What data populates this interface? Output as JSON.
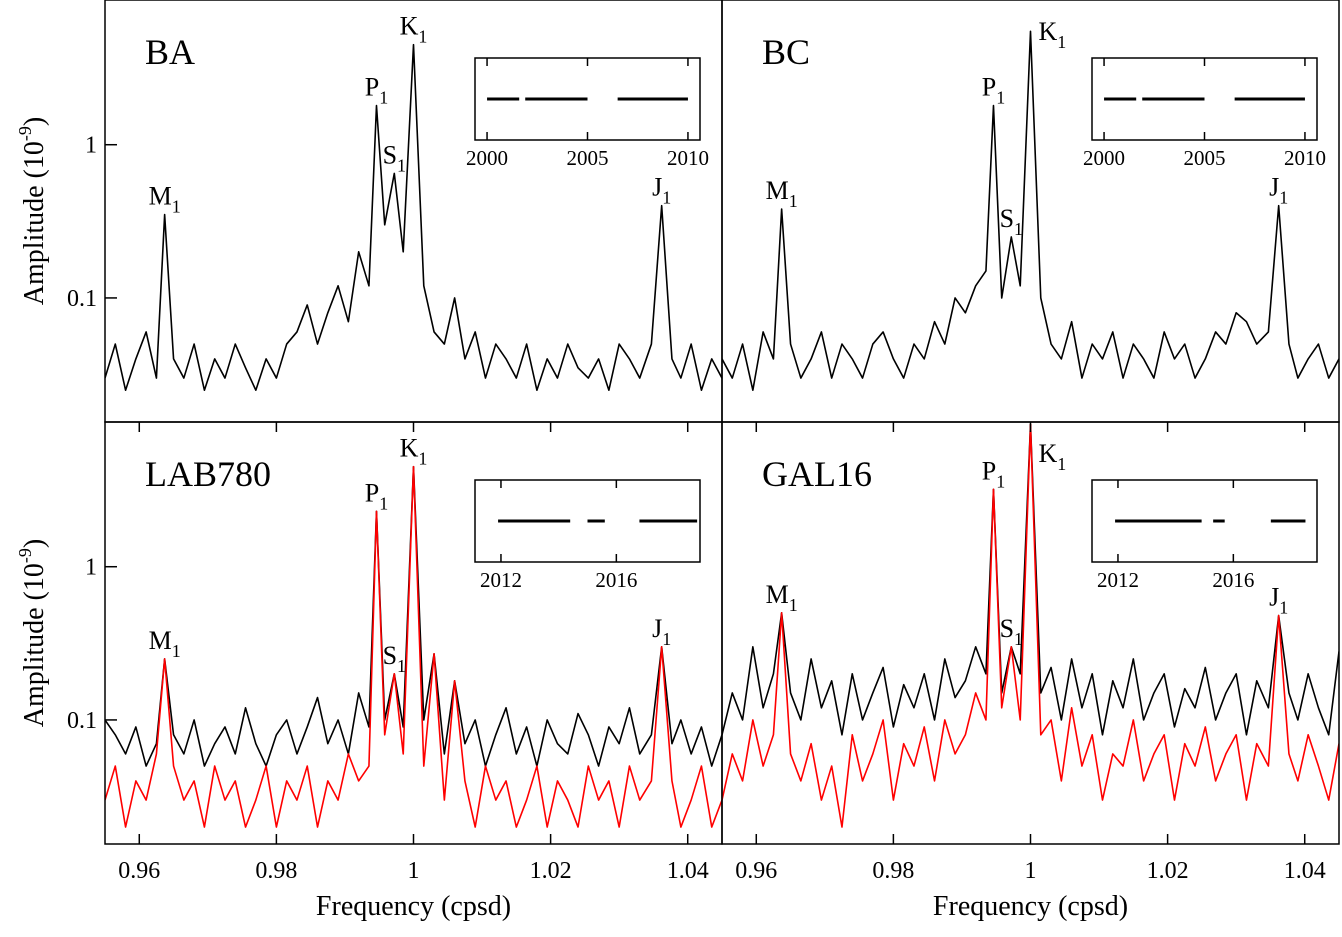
{
  "chart_data": [
    {
      "type": "line",
      "title": "BA",
      "yscale": "log",
      "xlim": [
        0.955,
        1.045
      ],
      "ylim": [
        0.0155,
        8.8
      ],
      "ylabel": {
        "text": "Amplitude (10",
        "sup": "-9",
        "end": ")"
      },
      "yticks": [
        0.1,
        1
      ],
      "x": [
        0.955,
        0.9565,
        0.958,
        0.9595,
        0.961,
        0.9625,
        0.9637,
        0.965,
        0.9665,
        0.968,
        0.9695,
        0.971,
        0.9725,
        0.974,
        0.9755,
        0.977,
        0.9785,
        0.98,
        0.9815,
        0.983,
        0.9845,
        0.986,
        0.9875,
        0.989,
        0.9905,
        0.992,
        0.9935,
        0.9946,
        0.9958,
        0.9972,
        0.9985,
        1.0,
        1.0015,
        1.003,
        1.0045,
        1.006,
        1.0075,
        1.009,
        1.0105,
        1.012,
        1.0135,
        1.015,
        1.0165,
        1.018,
        1.0195,
        1.021,
        1.0225,
        1.024,
        1.0255,
        1.027,
        1.0285,
        1.03,
        1.0315,
        1.033,
        1.0347,
        1.0362,
        1.0377,
        1.039,
        1.0405,
        1.042,
        1.0435,
        1.045
      ],
      "series": [
        {
          "color": "#000000",
          "values": [
            0.03,
            0.05,
            0.025,
            0.04,
            0.06,
            0.03,
            0.35,
            0.04,
            0.03,
            0.05,
            0.025,
            0.04,
            0.03,
            0.05,
            0.035,
            0.025,
            0.04,
            0.03,
            0.05,
            0.06,
            0.09,
            0.05,
            0.08,
            0.12,
            0.07,
            0.2,
            0.12,
            1.8,
            0.3,
            0.65,
            0.2,
            4.5,
            0.12,
            0.06,
            0.05,
            0.1,
            0.04,
            0.06,
            0.03,
            0.05,
            0.04,
            0.03,
            0.05,
            0.025,
            0.04,
            0.03,
            0.05,
            0.035,
            0.03,
            0.04,
            0.025,
            0.05,
            0.04,
            0.03,
            0.05,
            0.4,
            0.04,
            0.03,
            0.05,
            0.025,
            0.04,
            0.03
          ]
        }
      ],
      "annotations": [
        {
          "label": "M",
          "sub": "1",
          "x": 0.9637
        },
        {
          "label": "P",
          "sub": "1",
          "x": 0.9946
        },
        {
          "label": "S",
          "sub": "1",
          "x": 0.9972
        },
        {
          "label": "K",
          "sub": "1",
          "x": 1.0
        },
        {
          "label": "J",
          "sub": "1",
          "x": 1.0362
        }
      ],
      "inset": {
        "xlim": [
          1999.4,
          2010.6
        ],
        "xticks": [
          2000,
          2005,
          2010
        ],
        "segments": [
          [
            2000,
            2001.6
          ],
          [
            2001.9,
            2005
          ],
          [
            2006.5,
            2010
          ]
        ]
      }
    },
    {
      "type": "line",
      "title": "BC",
      "yscale": "log",
      "xlim": [
        0.955,
        1.045
      ],
      "ylim": [
        0.0155,
        8.8
      ],
      "x": [
        0.955,
        0.9565,
        0.958,
        0.9595,
        0.961,
        0.9625,
        0.9637,
        0.965,
        0.9665,
        0.968,
        0.9695,
        0.971,
        0.9725,
        0.974,
        0.9755,
        0.977,
        0.9785,
        0.98,
        0.9815,
        0.983,
        0.9845,
        0.986,
        0.9875,
        0.989,
        0.9905,
        0.992,
        0.9935,
        0.9946,
        0.9958,
        0.9972,
        0.9985,
        1.0,
        1.0015,
        1.003,
        1.0045,
        1.006,
        1.0075,
        1.009,
        1.0105,
        1.012,
        1.0135,
        1.015,
        1.0165,
        1.018,
        1.0195,
        1.021,
        1.0225,
        1.024,
        1.0255,
        1.027,
        1.0285,
        1.03,
        1.0315,
        1.033,
        1.0347,
        1.0362,
        1.0377,
        1.039,
        1.0405,
        1.042,
        1.0435,
        1.045
      ],
      "series": [
        {
          "color": "#000000",
          "values": [
            0.04,
            0.03,
            0.05,
            0.025,
            0.06,
            0.04,
            0.38,
            0.05,
            0.03,
            0.04,
            0.06,
            0.03,
            0.05,
            0.04,
            0.03,
            0.05,
            0.06,
            0.04,
            0.03,
            0.05,
            0.04,
            0.07,
            0.05,
            0.1,
            0.08,
            0.12,
            0.15,
            1.8,
            0.1,
            0.25,
            0.12,
            5.5,
            0.1,
            0.05,
            0.04,
            0.07,
            0.03,
            0.05,
            0.04,
            0.06,
            0.03,
            0.05,
            0.04,
            0.03,
            0.06,
            0.04,
            0.05,
            0.03,
            0.04,
            0.06,
            0.05,
            0.08,
            0.07,
            0.05,
            0.06,
            0.4,
            0.05,
            0.03,
            0.04,
            0.05,
            0.03,
            0.04
          ]
        }
      ],
      "annotations": [
        {
          "label": "M",
          "sub": "1",
          "x": 0.9637
        },
        {
          "label": "P",
          "sub": "1",
          "x": 0.9946
        },
        {
          "label": "S",
          "sub": "1",
          "x": 0.9972
        },
        {
          "label": "K",
          "sub": "1",
          "x": 1.0
        },
        {
          "label": "J",
          "sub": "1",
          "x": 1.0362
        }
      ],
      "inset": {
        "xlim": [
          1999.4,
          2010.6
        ],
        "xticks": [
          2000,
          2005,
          2010
        ],
        "segments": [
          [
            2000,
            2001.6
          ],
          [
            2001.9,
            2005
          ],
          [
            2006.5,
            2010
          ]
        ]
      }
    },
    {
      "type": "line",
      "title": "LAB780",
      "yscale": "log",
      "xlim": [
        0.955,
        1.045
      ],
      "ylim": [
        0.0155,
        8.8
      ],
      "ylabel": {
        "text": "Amplitude (10",
        "sup": "-9",
        "end": ")"
      },
      "yticks": [
        0.1,
        1
      ],
      "xlabel": "Frequency (cpsd)",
      "xticks": [
        0.96,
        0.98,
        1,
        1.02,
        1.04
      ],
      "x": [
        0.955,
        0.9565,
        0.958,
        0.9595,
        0.961,
        0.9625,
        0.9637,
        0.965,
        0.9665,
        0.968,
        0.9695,
        0.971,
        0.9725,
        0.974,
        0.9755,
        0.977,
        0.9785,
        0.98,
        0.9815,
        0.983,
        0.9845,
        0.986,
        0.9875,
        0.989,
        0.9905,
        0.992,
        0.9935,
        0.9946,
        0.9958,
        0.9972,
        0.9985,
        1.0,
        1.0015,
        1.003,
        1.0045,
        1.006,
        1.0075,
        1.009,
        1.0105,
        1.012,
        1.0135,
        1.015,
        1.0165,
        1.018,
        1.0195,
        1.021,
        1.0225,
        1.024,
        1.0255,
        1.027,
        1.0285,
        1.03,
        1.0315,
        1.033,
        1.0347,
        1.0362,
        1.0377,
        1.039,
        1.0405,
        1.042,
        1.0435,
        1.045
      ],
      "series": [
        {
          "color": "#000000",
          "values": [
            0.1,
            0.08,
            0.06,
            0.09,
            0.05,
            0.07,
            0.25,
            0.08,
            0.06,
            0.1,
            0.05,
            0.07,
            0.09,
            0.06,
            0.12,
            0.07,
            0.05,
            0.08,
            0.1,
            0.06,
            0.09,
            0.14,
            0.07,
            0.1,
            0.06,
            0.15,
            0.09,
            2.3,
            0.1,
            0.2,
            0.09,
            4.5,
            0.1,
            0.27,
            0.06,
            0.18,
            0.07,
            0.1,
            0.05,
            0.08,
            0.12,
            0.06,
            0.09,
            0.05,
            0.1,
            0.07,
            0.06,
            0.11,
            0.08,
            0.05,
            0.09,
            0.07,
            0.12,
            0.06,
            0.08,
            0.3,
            0.07,
            0.1,
            0.06,
            0.09,
            0.05,
            0.08
          ]
        },
        {
          "color": "#ff0000",
          "values": [
            0.03,
            0.05,
            0.02,
            0.04,
            0.03,
            0.06,
            0.25,
            0.05,
            0.03,
            0.04,
            0.02,
            0.05,
            0.03,
            0.04,
            0.02,
            0.03,
            0.05,
            0.02,
            0.04,
            0.03,
            0.05,
            0.02,
            0.04,
            0.03,
            0.06,
            0.04,
            0.05,
            2.3,
            0.08,
            0.2,
            0.06,
            4.5,
            0.05,
            0.27,
            0.03,
            0.18,
            0.04,
            0.02,
            0.05,
            0.03,
            0.04,
            0.02,
            0.03,
            0.05,
            0.02,
            0.04,
            0.03,
            0.02,
            0.05,
            0.03,
            0.04,
            0.02,
            0.05,
            0.03,
            0.04,
            0.3,
            0.04,
            0.02,
            0.03,
            0.05,
            0.02,
            0.03
          ]
        }
      ],
      "annotations": [
        {
          "label": "M",
          "sub": "1",
          "x": 0.9637
        },
        {
          "label": "P",
          "sub": "1",
          "x": 0.9946
        },
        {
          "label": "S",
          "sub": "1",
          "x": 0.9972
        },
        {
          "label": "K",
          "sub": "1",
          "x": 1.0
        },
        {
          "label": "J",
          "sub": "1",
          "x": 1.0362
        }
      ],
      "inset": {
        "xlim": [
          2011.1,
          2018.9
        ],
        "xticks": [
          2012,
          2016
        ],
        "segments": [
          [
            2011.9,
            2014.4
          ],
          [
            2015,
            2015.6
          ],
          [
            2016.8,
            2018.8
          ]
        ]
      }
    },
    {
      "type": "line",
      "title": "GAL16",
      "yscale": "log",
      "xlim": [
        0.955,
        1.045
      ],
      "ylim": [
        0.0155,
        8.8
      ],
      "xlabel": "Frequency (cpsd)",
      "xticks": [
        0.96,
        0.98,
        1,
        1.02,
        1.04
      ],
      "x": [
        0.955,
        0.9565,
        0.958,
        0.9595,
        0.961,
        0.9625,
        0.9637,
        0.965,
        0.9665,
        0.968,
        0.9695,
        0.971,
        0.9725,
        0.974,
        0.9755,
        0.977,
        0.9785,
        0.98,
        0.9815,
        0.983,
        0.9845,
        0.986,
        0.9875,
        0.989,
        0.9905,
        0.992,
        0.9935,
        0.9946,
        0.9958,
        0.9972,
        0.9985,
        1.0,
        1.0015,
        1.003,
        1.0045,
        1.006,
        1.0075,
        1.009,
        1.0105,
        1.012,
        1.0135,
        1.015,
        1.0165,
        1.018,
        1.0195,
        1.021,
        1.0225,
        1.024,
        1.0255,
        1.027,
        1.0285,
        1.03,
        1.0315,
        1.033,
        1.0347,
        1.0362,
        1.0377,
        1.039,
        1.0405,
        1.042,
        1.0435,
        1.045
      ],
      "series": [
        {
          "color": "#000000",
          "values": [
            0.08,
            0.15,
            0.1,
            0.3,
            0.12,
            0.2,
            0.5,
            0.15,
            0.1,
            0.25,
            0.12,
            0.18,
            0.08,
            0.2,
            0.1,
            0.15,
            0.22,
            0.09,
            0.17,
            0.12,
            0.2,
            0.1,
            0.25,
            0.14,
            0.18,
            0.3,
            0.2,
            3.2,
            0.15,
            0.3,
            0.2,
            8.5,
            0.15,
            0.22,
            0.1,
            0.25,
            0.12,
            0.2,
            0.08,
            0.18,
            0.12,
            0.25,
            0.1,
            0.15,
            0.2,
            0.09,
            0.16,
            0.12,
            0.22,
            0.1,
            0.15,
            0.2,
            0.08,
            0.18,
            0.12,
            0.48,
            0.15,
            0.1,
            0.2,
            0.12,
            0.08,
            0.28
          ]
        },
        {
          "color": "#ff0000",
          "values": [
            0.03,
            0.06,
            0.04,
            0.1,
            0.05,
            0.08,
            0.5,
            0.06,
            0.04,
            0.07,
            0.03,
            0.05,
            0.02,
            0.08,
            0.04,
            0.06,
            0.1,
            0.03,
            0.07,
            0.05,
            0.09,
            0.04,
            0.1,
            0.06,
            0.08,
            0.15,
            0.1,
            3.2,
            0.12,
            0.3,
            0.1,
            8.5,
            0.08,
            0.1,
            0.04,
            0.12,
            0.05,
            0.08,
            0.03,
            0.06,
            0.05,
            0.1,
            0.04,
            0.06,
            0.08,
            0.03,
            0.07,
            0.05,
            0.09,
            0.04,
            0.06,
            0.08,
            0.03,
            0.07,
            0.05,
            0.48,
            0.06,
            0.04,
            0.08,
            0.05,
            0.03,
            0.07
          ]
        }
      ],
      "annotations": [
        {
          "label": "M",
          "sub": "1",
          "x": 0.9637
        },
        {
          "label": "P",
          "sub": "1",
          "x": 0.9946
        },
        {
          "label": "S",
          "sub": "1",
          "x": 0.9972
        },
        {
          "label": "K",
          "sub": "1",
          "x": 1.0
        },
        {
          "label": "J",
          "sub": "1",
          "x": 1.0362
        }
      ],
      "inset": {
        "xlim": [
          2011.1,
          2018.9
        ],
        "xticks": [
          2012,
          2016
        ],
        "segments": [
          [
            2011.9,
            2014.9
          ],
          [
            2015.3,
            2015.7
          ],
          [
            2017.3,
            2018.5
          ]
        ]
      }
    }
  ]
}
